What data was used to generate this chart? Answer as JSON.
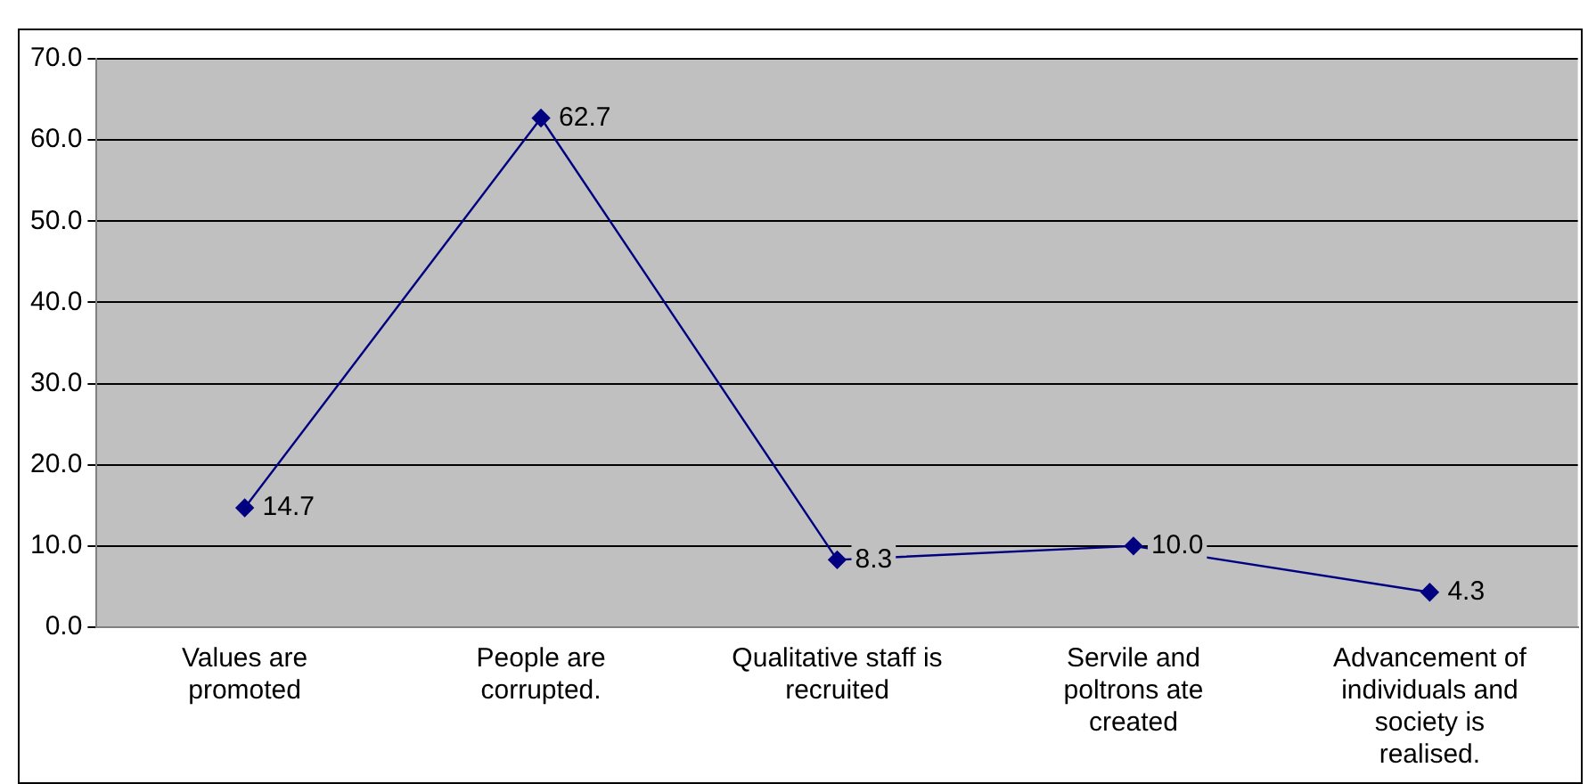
{
  "chart_data": {
    "type": "line",
    "categories": [
      "Values are\npromoted",
      "People are\ncorrupted.",
      "Qualitative staff is\nrecruited",
      "Servile and\npoltrons ate\ncreated",
      "Advancement of\nindividuals and\nsociety is\nrealised."
    ],
    "series": [
      {
        "color": "#000080",
        "values": [
          14.7,
          62.7,
          8.3,
          10.0,
          4.3
        ],
        "value_labels": [
          "14.7",
          "62.7",
          "8.3",
          "10.0",
          "4.3"
        ]
      }
    ],
    "ylim": [
      0,
      70
    ],
    "yticks": [
      {
        "value": 0,
        "label": "0.0"
      },
      {
        "value": 10,
        "label": "10.0"
      },
      {
        "value": 20,
        "label": "20.0"
      },
      {
        "value": 30,
        "label": "30.0"
      },
      {
        "value": 40,
        "label": "40.0"
      },
      {
        "value": 50,
        "label": "50.0"
      },
      {
        "value": 60,
        "label": "60.0"
      },
      {
        "value": 70,
        "label": "70.0"
      }
    ],
    "grid": "y",
    "legend": false,
    "marker": "diamond",
    "line_style": "solid"
  }
}
